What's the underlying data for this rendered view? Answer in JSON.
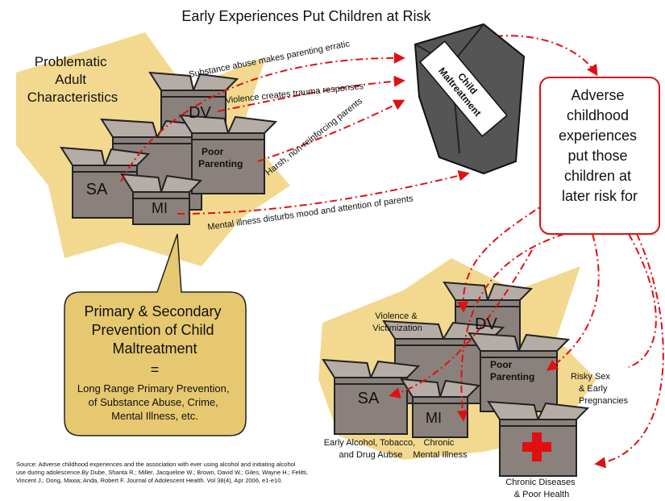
{
  "title": "Early Experiences Put Children at Risk",
  "adult_label": {
    "lines": [
      "Problematic",
      "Adult",
      "Characteristics"
    ]
  },
  "top_boxes": {
    "dv": "DV",
    "poor_parenting": [
      "Poor",
      "Parenting"
    ],
    "sa": "SA",
    "mi": "MI"
  },
  "arrow_labels": [
    "Substance abuse makes parenting erratic",
    "Violence creates trauma responses",
    "Harsh, non-reinforcing parents",
    "Mental illness disturbs mood and attention of parents"
  ],
  "bag_label": [
    "Child",
    "Maltreatment"
  ],
  "risk_box": {
    "lines": [
      "Adverse",
      "childhood",
      "experiences",
      "put those",
      "children at",
      "later risk for"
    ]
  },
  "callout": {
    "heading": [
      "Primary & Secondary",
      "Prevention of Child",
      "Maltreatment"
    ],
    "equals": "=",
    "body": [
      "Long Range Primary Prevention,",
      "of Substance Abuse, Crime,",
      "Mental Illness, etc."
    ]
  },
  "bottom_boxes": {
    "dv": "DV",
    "poor_parenting": [
      "Poor",
      "Parenting"
    ],
    "sa": "SA",
    "mi": "MI"
  },
  "outcomes": {
    "violence": [
      "Violence &",
      "Victimization"
    ],
    "risky_sex": [
      "Risky Sex",
      "& Early",
      "Pregnancies"
    ],
    "alcohol": [
      "Early Alcohol, Tobacco,",
      "and Drug Aubse"
    ],
    "mental": [
      "Chronic",
      "Mental Illness"
    ],
    "chronic": [
      "Chronic Diseases",
      "& Poor Health"
    ]
  },
  "source": [
    "Source: Adverse childhood experiences and the association with ever using  alcohol and initiating alcohol",
    "use during adolescence.By Dube, Shanta R.; Miller, Jacqueline W.; Brown, David W.; Giles,   Wayne H.; Felitti,",
    "Vincent J.; Dong, Maxia; Anda, Robert F. Journal of Adolescent Health. Vol 38(4), Apr 2006, e1-e10."
  ]
}
